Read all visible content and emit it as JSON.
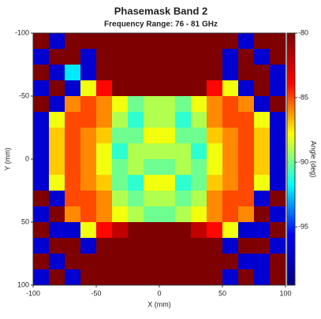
{
  "chart_data": {
    "type": "heatmap",
    "title": "Phasemask Band 2",
    "subtitle": "Frequency Range: 76 - 81 GHz",
    "x_label": "X (mm)",
    "y_label": "Y (mm)",
    "colorbar_label": "Angle (deg)",
    "xlim": [
      -100,
      100
    ],
    "ylim": [
      -100,
      100
    ],
    "y_inverted": true,
    "xticks": [
      -100,
      -50,
      0,
      50,
      100
    ],
    "yticks": [
      -100,
      -50,
      0,
      50,
      100
    ],
    "zlim": [
      -99.5,
      -80
    ],
    "zticks": [
      -80,
      -85,
      -90,
      -95
    ],
    "colormap": [
      "#00007f",
      "#0000ff",
      "#00ffff",
      "#ffff00",
      "#ff0000",
      "#7f0000"
    ],
    "z": [
      [
        -80,
        -97,
        -80,
        -80,
        -80,
        -80,
        -80,
        -80,
        -80,
        -80,
        -80,
        -80,
        -80,
        -97,
        -80,
        -80
      ],
      [
        -97,
        -80,
        -80,
        -97,
        -80,
        -80,
        -80,
        -80,
        -80,
        -80,
        -80,
        -80,
        -97,
        -80,
        -97,
        -80
      ],
      [
        -80,
        -97,
        -92,
        -97,
        -80,
        -80,
        -80,
        -80,
        -80,
        -80,
        -80,
        -80,
        -97,
        -80,
        -80,
        -97
      ],
      [
        -97,
        -80,
        -97,
        -88,
        -84,
        -80,
        -80,
        -80,
        -80,
        -80,
        -80,
        -84,
        -88,
        -97,
        -80,
        -97
      ],
      [
        -80,
        -97,
        -86,
        -85,
        -86,
        -88,
        -90,
        -89,
        -89,
        -90,
        -88,
        -86,
        -85,
        -86,
        -97,
        -80
      ],
      [
        -97,
        -88,
        -85,
        -85,
        -86,
        -89,
        -91,
        -89,
        -89,
        -91,
        -89,
        -86,
        -85,
        -85,
        -88,
        -97
      ],
      [
        -97,
        -87,
        -85,
        -86,
        -87,
        -90,
        -90,
        -88,
        -88,
        -90,
        -90,
        -87,
        -86,
        -85,
        -87,
        -97
      ],
      [
        -97,
        -87,
        -85,
        -86,
        -88,
        -91,
        -89,
        -89,
        -89,
        -89,
        -91,
        -88,
        -86,
        -85,
        -87,
        -97
      ],
      [
        -97,
        -87,
        -85,
        -86,
        -88,
        -90,
        -89,
        -90,
        -90,
        -89,
        -90,
        -88,
        -86,
        -85,
        -87,
        -97
      ],
      [
        -97,
        -88,
        -85,
        -86,
        -87,
        -90,
        -91,
        -88,
        -88,
        -91,
        -90,
        -87,
        -86,
        -85,
        -88,
        -97
      ],
      [
        -80,
        -97,
        -85,
        -85,
        -86,
        -89,
        -90,
        -89,
        -89,
        -90,
        -89,
        -86,
        -85,
        -85,
        -97,
        -80
      ],
      [
        -97,
        -80,
        -86,
        -85,
        -86,
        -88,
        -89,
        -90,
        -90,
        -89,
        -88,
        -86,
        -85,
        -86,
        -80,
        -97
      ],
      [
        -80,
        -97,
        -97,
        -88,
        -84,
        -82,
        -80,
        -80,
        -80,
        -80,
        -82,
        -84,
        -88,
        -97,
        -97,
        -80
      ],
      [
        -97,
        -80,
        -80,
        -97,
        -80,
        -80,
        -80,
        -80,
        -80,
        -80,
        -80,
        -80,
        -97,
        -80,
        -80,
        -97
      ],
      [
        -80,
        -97,
        -80,
        -80,
        -80,
        -80,
        -80,
        -80,
        -80,
        -80,
        -80,
        -80,
        -80,
        -97,
        -97,
        -80
      ],
      [
        -97,
        -80,
        -97,
        -80,
        -80,
        -80,
        -80,
        -80,
        -80,
        -80,
        -80,
        -80,
        -97,
        -80,
        -97,
        -80
      ]
    ]
  }
}
